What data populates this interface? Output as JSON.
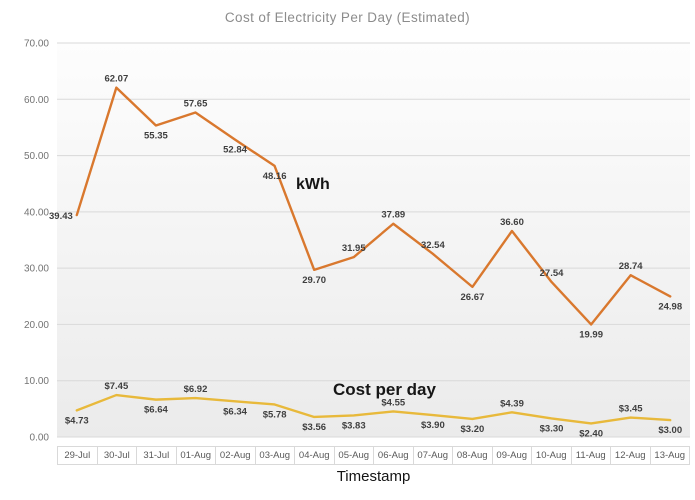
{
  "title": "Cost of Electricity Per Day (Estimated)",
  "x_axis_title": "Timestamp",
  "colors": {
    "kwh_line": "#D9782E",
    "cost_line": "#E8B93B",
    "title_text": "#8C8C8C",
    "tick_text": "#737373",
    "data_label_text": "#3F3F3F",
    "gridline": "#D9D9D9",
    "date_cell_border": "#D9D9D9",
    "date_cell_text": "#595959",
    "plot_bg_top": "#FDFDFD",
    "plot_bg_bottom": "#EBEBEB"
  },
  "chart_data": {
    "type": "line",
    "title": "Cost of Electricity Per Day (Estimated)",
    "xlabel": "Timestamp",
    "ylabel": "",
    "ylim": [
      0,
      70
    ],
    "ytick_labels": [
      "0.00",
      "10.00",
      "20.00",
      "30.00",
      "40.00",
      "50.00",
      "60.00",
      "70.00"
    ],
    "grid": true,
    "legend_position": "none",
    "categories": [
      "29-Jul",
      "30-Jul",
      "31-Jul",
      "01-Aug",
      "02-Aug",
      "03-Aug",
      "04-Aug",
      "05-Aug",
      "06-Aug",
      "07-Aug",
      "08-Aug",
      "09-Aug",
      "10-Aug",
      "11-Aug",
      "12-Aug",
      "13-Aug"
    ],
    "series": [
      {
        "name": "kWh",
        "values": [
          39.43,
          62.07,
          55.35,
          57.65,
          52.84,
          48.16,
          29.7,
          31.95,
          37.89,
          32.54,
          26.67,
          36.6,
          27.54,
          19.99,
          28.74,
          24.98
        ],
        "label_prefix": "",
        "label_pos": [
          "l",
          "a",
          "b",
          "a",
          "b",
          "b",
          "b",
          "a",
          "a",
          "a",
          "b",
          "a",
          "a",
          "b",
          "a",
          "b"
        ]
      },
      {
        "name": "Cost per day",
        "values": [
          4.73,
          7.45,
          6.64,
          6.92,
          6.34,
          5.78,
          3.56,
          3.83,
          4.55,
          3.9,
          3.2,
          4.39,
          3.3,
          2.4,
          3.45,
          3.0
        ],
        "label_prefix": "$",
        "label_pos": [
          "b",
          "a",
          "b",
          "a",
          "b",
          "b",
          "b",
          "b",
          "a",
          "b",
          "b",
          "a",
          "b",
          "b",
          "a",
          "b"
        ]
      }
    ],
    "annotations": [
      {
        "text": "kWh"
      },
      {
        "text": "Cost per day"
      }
    ]
  }
}
